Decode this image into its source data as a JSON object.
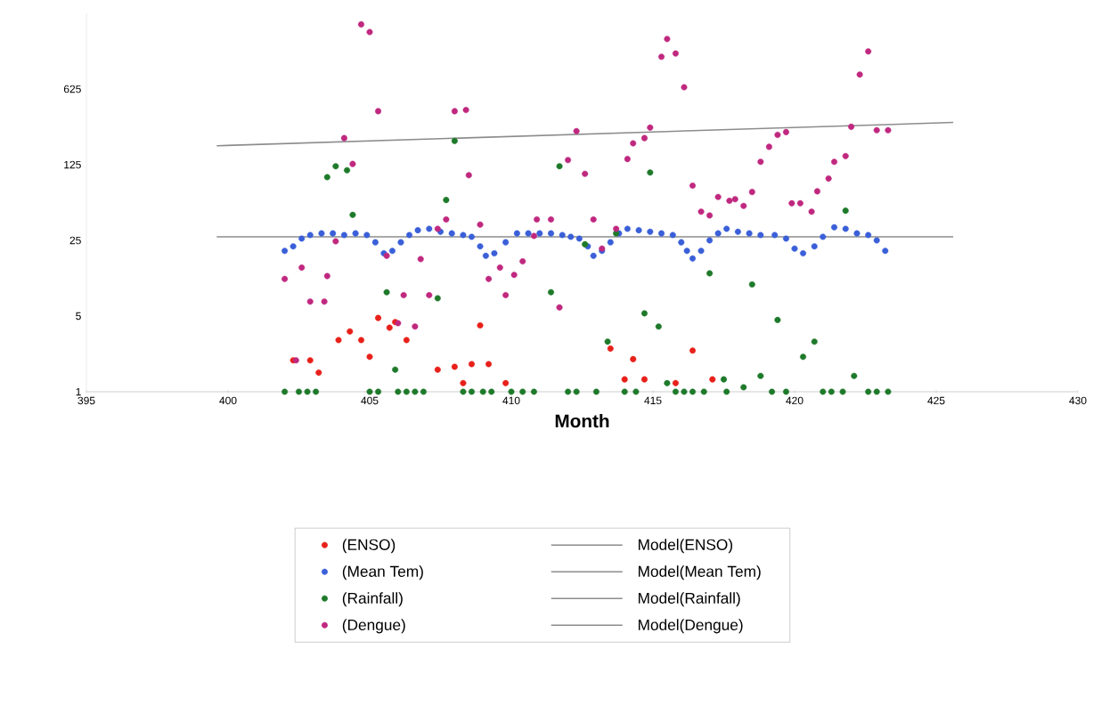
{
  "chart_data": {
    "type": "scatter",
    "xlabel": "Month",
    "xlim": [
      395,
      430
    ],
    "xticks": [
      395,
      400,
      405,
      410,
      415,
      420,
      425,
      430
    ],
    "ylim": [
      1,
      3125
    ],
    "yticks": [
      1,
      5,
      25,
      125,
      625
    ],
    "log": "y",
    "legend": "bottom",
    "grid": false,
    "series": [
      {
        "name": "(ENSO)",
        "marker": "circle",
        "color": "#e8201a",
        "x": [
          402.3,
          402.9,
          403.2,
          403.9,
          404.3,
          404.7,
          405.0,
          405.3,
          405.7,
          405.9,
          406.3,
          407.4,
          408.0,
          408.3,
          408.6,
          408.9,
          409.2,
          409.8,
          413.5,
          414.0,
          414.3,
          414.7,
          415.8,
          416.4,
          417.1
        ],
        "values": [
          1.95,
          1.95,
          1.5,
          3.0,
          3.6,
          3.0,
          2.1,
          4.8,
          3.9,
          4.4,
          3.0,
          1.6,
          1.7,
          1.2,
          1.8,
          4.1,
          1.8,
          1.2,
          2.5,
          1.3,
          2.0,
          1.3,
          1.2,
          2.4,
          1.3
        ]
      },
      {
        "name": "Model(ENSO)",
        "type": "line",
        "marker": "none",
        "color": "#8c8c8c"
      },
      {
        "name": "(Mean Tem)",
        "marker": "circle",
        "color": "#3a5fd8",
        "x": [
          402.0,
          402.3,
          402.6,
          402.9,
          403.3,
          403.7,
          404.1,
          404.5,
          404.9,
          405.2,
          405.5,
          405.8,
          406.1,
          406.4,
          406.7,
          407.1,
          407.5,
          407.9,
          408.3,
          408.6,
          408.9,
          409.1,
          409.4,
          409.8,
          410.2,
          410.6,
          411.0,
          411.4,
          411.8,
          412.1,
          412.4,
          412.7,
          412.9,
          413.2,
          413.5,
          413.8,
          414.1,
          414.5,
          414.9,
          415.3,
          415.7,
          416.0,
          416.2,
          416.4,
          416.7,
          417.0,
          417.3,
          417.6,
          418.0,
          418.4,
          418.8,
          419.3,
          419.7,
          420.0,
          420.3,
          420.7,
          421.0,
          421.4,
          421.8,
          422.2,
          422.6,
          422.9,
          423.2
        ],
        "values": [
          20,
          22,
          26,
          28,
          29,
          29,
          28,
          29,
          28,
          24,
          19,
          20,
          24,
          28,
          31,
          32,
          30,
          29,
          28,
          27,
          22,
          18,
          19,
          24,
          29,
          29,
          29,
          29,
          28,
          27,
          26,
          22,
          18,
          20,
          24,
          29,
          32,
          31,
          30,
          29,
          28,
          24,
          20,
          17,
          20,
          25,
          29,
          32,
          30,
          29,
          28,
          28,
          26,
          21,
          19,
          22,
          27,
          33,
          32,
          29,
          28,
          25,
          20
        ]
      },
      {
        "name": "Model(Mean Tem)",
        "type": "line",
        "marker": "none",
        "color": "#8c8c8c",
        "x": [
          399.6,
          425.6
        ],
        "values": [
          27,
          27
        ]
      },
      {
        "name": "(Rainfall)",
        "marker": "circle",
        "color": "#1e7a2a",
        "x": [
          402.0,
          402.5,
          402.8,
          403.1,
          403.5,
          403.8,
          404.2,
          404.4,
          405.0,
          405.3,
          405.6,
          405.9,
          406.0,
          406.3,
          406.6,
          406.9,
          407.4,
          407.7,
          408.0,
          408.3,
          408.6,
          409.0,
          409.3,
          410.0,
          410.4,
          410.8,
          411.4,
          411.7,
          412.0,
          412.3,
          412.6,
          413.0,
          413.4,
          413.7,
          414.0,
          414.4,
          414.7,
          414.9,
          415.2,
          415.5,
          415.8,
          416.1,
          416.4,
          416.8,
          417.0,
          417.5,
          417.6,
          418.2,
          418.5,
          418.8,
          419.2,
          419.4,
          419.7,
          420.3,
          420.7,
          421.0,
          421.3,
          421.7,
          421.8,
          422.1,
          422.6,
          422.9,
          423.3
        ],
        "values": [
          1,
          1,
          1,
          1,
          96,
          121,
          111,
          43,
          1,
          1,
          8.3,
          1.6,
          1,
          1,
          1,
          1,
          7.3,
          59,
          207,
          1,
          1,
          1,
          1,
          1,
          1,
          1,
          8.3,
          121,
          1,
          1,
          23,
          1,
          2.9,
          29,
          1,
          1,
          5.3,
          106,
          4.0,
          1.2,
          1,
          1,
          1,
          1,
          12.4,
          1.3,
          1,
          1.1,
          9.8,
          1.4,
          1,
          4.6,
          1,
          2.1,
          2.9,
          1,
          1,
          1,
          47,
          1.4,
          1,
          1,
          1
        ]
      },
      {
        "name": "Model(Rainfall)",
        "type": "line",
        "marker": "none",
        "color": "#8c8c8c"
      },
      {
        "name": "(Dengue)",
        "marker": "circle",
        "color": "#c0287f",
        "x": [
          402.0,
          402.4,
          402.6,
          402.9,
          403.4,
          403.5,
          403.8,
          404.1,
          404.4,
          404.7,
          405.0,
          405.3,
          405.6,
          406.0,
          406.2,
          406.6,
          406.8,
          407.1,
          407.4,
          407.7,
          408.0,
          408.4,
          408.5,
          408.9,
          409.2,
          409.6,
          409.8,
          410.1,
          410.4,
          410.8,
          410.9,
          411.4,
          411.7,
          412.0,
          412.3,
          412.6,
          412.9,
          413.2,
          413.7,
          414.1,
          414.3,
          414.7,
          414.9,
          415.3,
          415.5,
          415.8,
          416.1,
          416.4,
          416.7,
          417.0,
          417.3,
          417.7,
          417.9,
          418.2,
          418.5,
          418.8,
          419.1,
          419.4,
          419.7,
          419.9,
          420.2,
          420.6,
          420.8,
          421.2,
          421.4,
          421.8,
          422.0,
          422.3,
          422.6,
          422.9,
          423.3
        ],
        "values": [
          11,
          1.95,
          14,
          6.8,
          6.8,
          11.7,
          24.5,
          220,
          127,
          2470,
          2100,
          390,
          18,
          4.3,
          7.8,
          4.0,
          16.8,
          7.8,
          32,
          39,
          390,
          400,
          100,
          35,
          11,
          14,
          7.8,
          12,
          16,
          27.5,
          39,
          39,
          6,
          138,
          255,
          103,
          39,
          21,
          32,
          141,
          197,
          220,
          275,
          1240,
          1810,
          1330,
          650,
          80,
          46,
          42.5,
          63,
          58,
          60,
          52,
          70,
          133,
          183,
          236,
          250,
          55,
          55,
          46,
          71,
          93,
          133,
          150,
          280,
          850,
          1390,
          260,
          260
        ]
      },
      {
        "name": "Model(Dengue)",
        "type": "line",
        "marker": "none",
        "color": "#8c8c8c",
        "x": [
          399.6,
          425.6
        ],
        "values": [
          187,
          307
        ]
      }
    ]
  }
}
